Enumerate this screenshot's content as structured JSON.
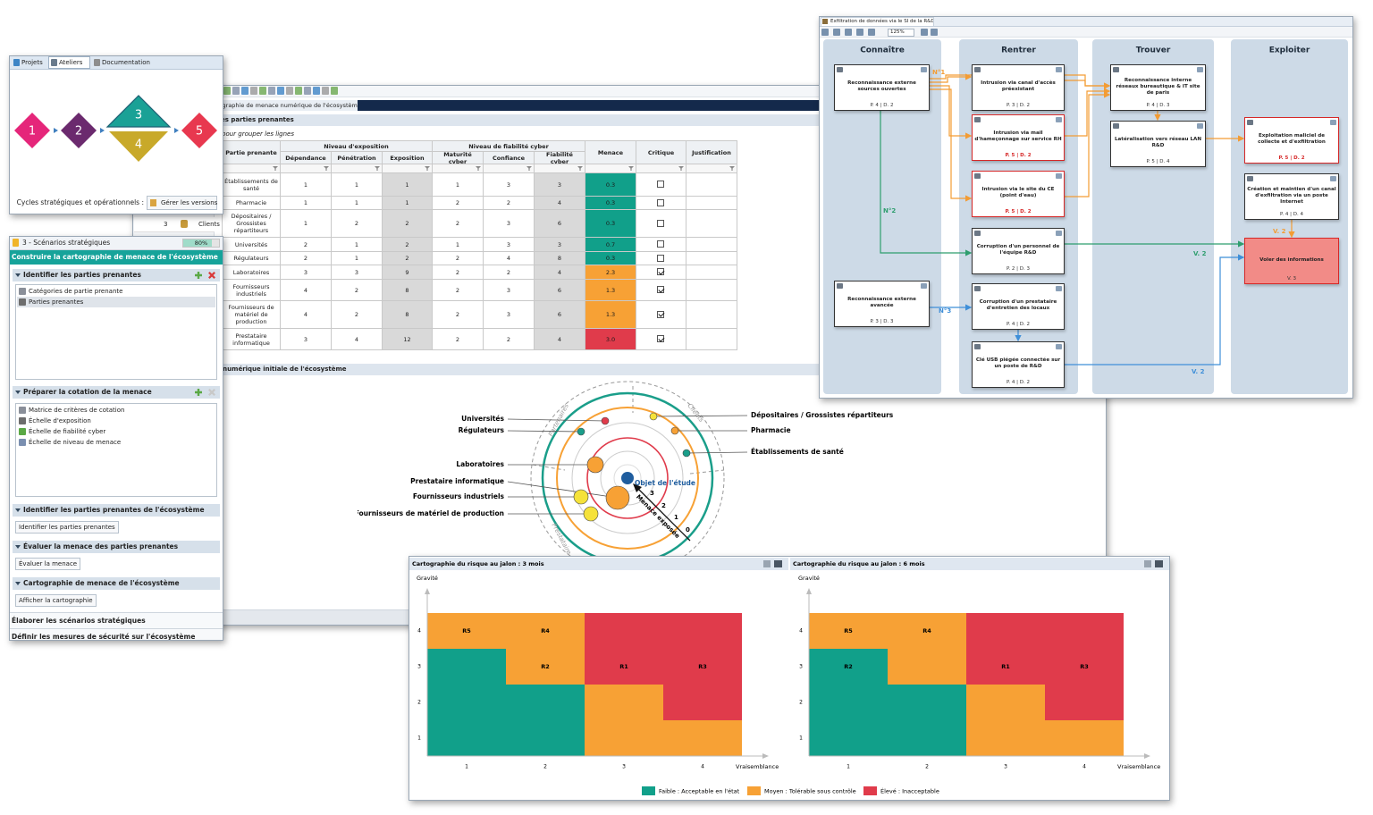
{
  "main_window": {
    "tab": "tographie de menace numérique de l'écosystème",
    "section_stakeholders": "des parties prenantes",
    "group_hint": "pour grouper les lignes",
    "peek_row": {
      "index": 3,
      "label": "Clients"
    },
    "table": {
      "group_headers": [
        "Niveau d'exposition",
        "Niveau de fiabilité cyber"
      ],
      "headers": [
        "Partie prenante",
        "Dépendance",
        "Pénétration",
        "Exposition",
        "Maturité cyber",
        "Confiance",
        "Fiabilité cyber",
        "Menace",
        "Critique",
        "Justification"
      ],
      "rows": [
        {
          "name": "Établissements de santé",
          "values": [
            1,
            1,
            1,
            1,
            3,
            3
          ],
          "menace": "0.3",
          "level": 0,
          "critical": false
        },
        {
          "name": "Pharmacie",
          "values": [
            1,
            1,
            1,
            2,
            2,
            4
          ],
          "menace": "0.3",
          "level": 0,
          "critical": false
        },
        {
          "name": "Dépositaires / Grossistes répartiteurs",
          "values": [
            1,
            2,
            2,
            2,
            3,
            6
          ],
          "menace": "0.3",
          "level": 0,
          "critical": false
        },
        {
          "name": "Universités",
          "values": [
            2,
            1,
            2,
            1,
            3,
            3
          ],
          "menace": "0.7",
          "level": 0,
          "critical": false
        },
        {
          "name": "Régulateurs",
          "values": [
            2,
            1,
            2,
            2,
            4,
            8
          ],
          "menace": "0.3",
          "level": 0,
          "critical": false
        },
        {
          "name": "Laboratoires",
          "values": [
            3,
            3,
            9,
            2,
            2,
            4
          ],
          "menace": "2.3",
          "level": 1,
          "critical": true
        },
        {
          "name": "Fournisseurs industriels",
          "values": [
            4,
            2,
            8,
            2,
            3,
            6
          ],
          "menace": "1.3",
          "level": 1,
          "critical": true
        },
        {
          "name": "Fournisseurs de matériel de production",
          "values": [
            4,
            2,
            8,
            2,
            3,
            6
          ],
          "menace": "1.3",
          "level": 1,
          "critical": true
        },
        {
          "name": "Prestataire informatique",
          "values": [
            3,
            4,
            12,
            2,
            2,
            4
          ],
          "menace": "3.0",
          "level": 2,
          "critical": true
        }
      ]
    },
    "section_map": "e numérique initiale de l'écosystème",
    "radar": {
      "left_labels": [
        "Universités",
        "Régulateurs",
        "Laboratoires",
        "Prestataire informatique",
        "Fournisseurs industriels",
        "Fournisseurs de matériel de production"
      ],
      "right_labels": [
        "Dépositaires / Grossistes répartiteurs",
        "Pharmacie",
        "Établissements de santé"
      ],
      "sectors": [
        "Partenaires",
        "Clients",
        "Prestataire"
      ],
      "center": "Objet de l'étude",
      "rings": [
        3,
        2,
        1,
        0
      ],
      "arrow": "Menace exposée"
    }
  },
  "cycles_panel": {
    "tabs": [
      "Projets",
      "Ateliers",
      "Documentation"
    ],
    "active_tab": 1,
    "steps": [
      "1",
      "2",
      "3",
      "4",
      "5"
    ],
    "versions_label": "Cycles stratégiques et opérationnels :",
    "versions_button": "Gérer les versions"
  },
  "workshop_panel": {
    "title": "3 - Scénarios stratégiques",
    "progress": {
      "value": 80,
      "label": "80%"
    },
    "header": "Construire la cartographie de menace de l'écosystème",
    "sections": [
      {
        "title": "Identifier les parties prenantes",
        "items": [
          "Catégories de partie prenante",
          "Parties prenantes"
        ],
        "selected": 1
      },
      {
        "title": "Préparer la cotation de la menace",
        "items": [
          "Matrice de critères de cotation",
          "Échelle d'exposition",
          "Échelle de fiabilité cyber",
          "Échelle de niveau de menace"
        ]
      },
      {
        "title": "Identifier les parties prenantes de l'écosystème",
        "button": "Identifier les parties prenantes"
      },
      {
        "title": "Évaluer la menace des parties prenantes",
        "button": "Évaluer la menace"
      },
      {
        "title": "Cartographie de menace de l'écosystème",
        "button": "Afficher la cartographie"
      }
    ],
    "footer": [
      "Élaborer les scénarios stratégiques",
      "Définir les mesures de sécurité sur l'écosystème"
    ]
  },
  "attack_window": {
    "tab": "Exfiltration de données via le SI de la R&D",
    "zoom": "125%",
    "phases": [
      "Connaître",
      "Rentrer",
      "Trouver",
      "Exploiter"
    ],
    "actions": [
      {
        "title": "Reconnaissance externe sources ouvertes",
        "ratings": "P. 4 | D. 2",
        "color": "#333333"
      },
      {
        "title": "Intrusion via canal d'accès préexistant",
        "ratings": "P. 3 | D. 2",
        "color": "#333333"
      },
      {
        "title": "Intrusion via mail d'hameçonnage sur service RH",
        "ratings": "P. 5 | D. 2",
        "color": "#d62828"
      },
      {
        "title": "Intrusion via le site du CE (point d'eau)",
        "ratings": "P. 5 | D. 2",
        "color": "#d62828"
      },
      {
        "title": "Corruption d'un personnel de l'équipe R&D",
        "ratings": "P. 2 | D. 3",
        "color": "#333333"
      },
      {
        "title": "Reconnaissance externe avancée",
        "ratings": "P. 3 | D. 3",
        "color": "#333333"
      },
      {
        "title": "Corruption d'un prestataire d'entretien des locaux",
        "ratings": "P. 4 | D. 2",
        "color": "#333333"
      },
      {
        "title": "Clé USB piégée connectée sur un poste de R&D",
        "ratings": "P. 4 | D. 2",
        "color": "#333333"
      },
      {
        "title": "Reconnaissance interne réseaux bureautique & IT site de paris",
        "ratings": "P. 4 | D. 3",
        "color": "#333333"
      },
      {
        "title": "Latéralisation vers réseau LAN R&D",
        "ratings": "P. 5 | D. 4",
        "color": "#333333"
      },
      {
        "title": "Exploitation maliciel de collecte et d'exfiltration",
        "ratings": "P. 5 | D. 2",
        "color": "#d62828"
      },
      {
        "title": "Création et maintien d'un canal d'exfiltration via un poste Internet",
        "ratings": "P. 4 | D. 4",
        "color": "#333333"
      },
      {
        "title": "Voler des informations",
        "ratings": "V. 3",
        "color": "#d62828",
        "fill": "#f28b87"
      }
    ],
    "arrow_labels": [
      {
        "text": "N°1",
        "color": "#f39c34"
      },
      {
        "text": "N°2",
        "color": "#2e9e6e"
      },
      {
        "text": "N°3",
        "color": "#3f8fd8"
      },
      {
        "text": "V. 2",
        "color": "#2e9e6e"
      },
      {
        "text": "V. 2",
        "color": "#3f8fd8"
      },
      {
        "text": "V. 2",
        "color": "#f39c34"
      }
    ]
  },
  "risk_maps": {
    "levels": [
      {
        "label": "Faible : Acceptable en l'état",
        "color": "#11a08a"
      },
      {
        "label": "Moyen : Tolérable sous contrôle",
        "color": "#f7a135"
      },
      {
        "label": "Élevé : Inacceptable",
        "color": "#e03b4b"
      }
    ],
    "y_label": "Gravité",
    "x_label": "Vraisemblance",
    "xticks": [
      1,
      2,
      3,
      4
    ],
    "yticks": [
      1,
      2,
      3,
      4
    ],
    "maps": [
      {
        "title": "Cartographie du risque au jalon : 3 mois",
        "cells": [
          [
            0,
            0,
            1,
            1
          ],
          [
            0,
            0,
            1,
            2
          ],
          [
            0,
            1,
            2,
            2
          ],
          [
            1,
            1,
            2,
            2
          ]
        ],
        "risks": [
          {
            "label": "R5",
            "x": 1,
            "y": 4
          },
          {
            "label": "R4",
            "x": 2,
            "y": 4
          },
          {
            "label": "R2",
            "x": 2,
            "y": 3
          },
          {
            "label": "R1",
            "x": 3,
            "y": 3
          },
          {
            "label": "R3",
            "x": 4,
            "y": 3
          }
        ]
      },
      {
        "title": "Cartographie du risque au jalon : 6 mois",
        "cells": [
          [
            0,
            0,
            1,
            1
          ],
          [
            0,
            0,
            1,
            2
          ],
          [
            0,
            1,
            2,
            2
          ],
          [
            1,
            1,
            2,
            2
          ]
        ],
        "risks": [
          {
            "label": "R5",
            "x": 1,
            "y": 4
          },
          {
            "label": "R4",
            "x": 2,
            "y": 4
          },
          {
            "label": "R2",
            "x": 1,
            "y": 3
          },
          {
            "label": "R1",
            "x": 3,
            "y": 3
          },
          {
            "label": "R3",
            "x": 4,
            "y": 3
          }
        ]
      }
    ]
  }
}
